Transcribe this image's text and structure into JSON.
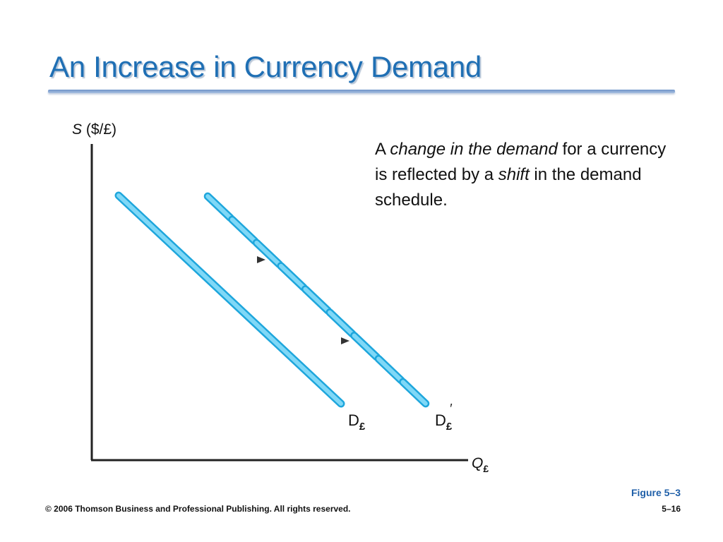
{
  "slide": {
    "title": "An Increase in Currency Demand",
    "body": {
      "part1": "A ",
      "italic1": "change in the demand",
      "part2": " for a currency is reflected by a ",
      "italic2": "shift",
      "part3": " in the demand schedule."
    },
    "figure_label": "Figure 5–3",
    "footer_copyright": "© 2006 Thomson Business and Professional Publishing. All rights reserved.",
    "page_number": "5–16"
  },
  "diagram": {
    "y_axis_label": {
      "symbol": "S",
      "units": "($/£)"
    },
    "x_axis_label": {
      "symbol": "Q",
      "subscript": "£"
    },
    "curves": {
      "original": {
        "base": "D",
        "subscript": "£",
        "prime": ""
      },
      "shifted": {
        "base": "D",
        "subscript": "£",
        "prime": "′"
      }
    },
    "colors": {
      "curve": "#45c3f0",
      "curve_edge": "#1ea6dc",
      "arrow": "#333333",
      "axis": "#222222"
    }
  }
}
